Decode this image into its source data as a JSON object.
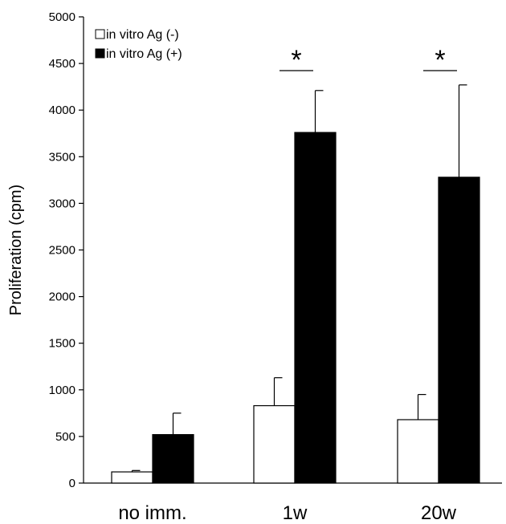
{
  "chart_data": {
    "type": "bar",
    "title": "",
    "xlabel": "",
    "ylabel": "Proliferation (cpm)",
    "ylim": [
      0,
      5000
    ],
    "yticks": [
      0,
      500,
      1000,
      1500,
      2000,
      2500,
      3000,
      3500,
      4000,
      4500,
      5000
    ],
    "categories": [
      "no imm.",
      "1w",
      "20w"
    ],
    "series": [
      {
        "name": "in vitro Ag (-)",
        "color": "#ffffff",
        "values": [
          120,
          830,
          680
        ],
        "error": [
          15,
          300,
          270
        ]
      },
      {
        "name": "in vitro Ag (+)",
        "color": "#000000",
        "values": [
          520,
          3760,
          3280
        ],
        "error": [
          230,
          450,
          990
        ]
      }
    ],
    "significance": [
      {
        "category": "1w",
        "label": "*"
      },
      {
        "category": "20w",
        "label": "*"
      }
    ],
    "legend_position": "top-left",
    "grid": false
  }
}
